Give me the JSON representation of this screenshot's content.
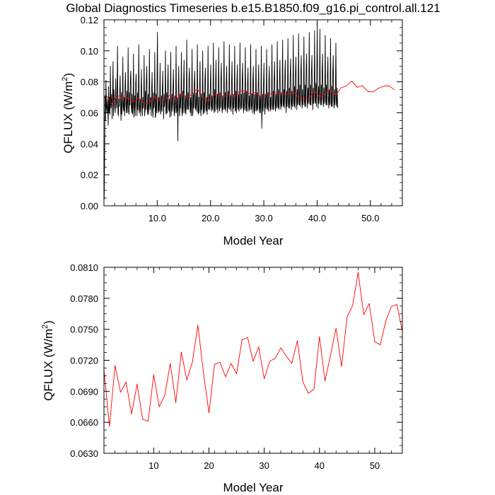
{
  "chart_data": [
    {
      "type": "line",
      "title": "Global Diagnostics Timeseries b.e15.B1850.f09_g16.pi_control.all.121",
      "ylabel_main": "QFLUX (W/m",
      "ylabel_sup": "2",
      "ylabel_close": ")",
      "xlabel": "Model Year",
      "xlim": [
        0.0,
        56.0
      ],
      "ylim": [
        0.0,
        0.12
      ],
      "x_ticks": [
        10,
        20,
        30,
        40,
        50
      ],
      "x_tick_labels": [
        "10.0",
        "20.0",
        "30.0",
        "40.0",
        "50.0"
      ],
      "y_ticks": [
        0.0,
        0.02,
        0.04,
        0.06,
        0.08,
        0.1,
        0.12
      ],
      "y_tick_labels": [
        "0.00",
        "0.02",
        "0.04",
        "0.06",
        "0.08",
        "0.10",
        "0.12"
      ],
      "series": [
        {
          "color": "#000000",
          "x_start": 0.0417,
          "x_step": 0.0833,
          "values": [
            0.004,
            0.03,
            0.071,
            0.055,
            0.081,
            0.064,
            0.06,
            0.069,
            0.062,
            0.052,
            0.077,
            0.06,
            0.07,
            0.059,
            0.09,
            0.063,
            0.066,
            0.072,
            0.056,
            0.074,
            0.093,
            0.058,
            0.075,
            0.068,
            0.063,
            0.06,
            0.082,
            0.067,
            0.063,
            0.072,
            0.103,
            0.06,
            0.058,
            0.069,
            0.064,
            0.074,
            0.084,
            0.063,
            0.055,
            0.073,
            0.059,
            0.066,
            0.096,
            0.064,
            0.061,
            0.07,
            0.058,
            0.077,
            0.086,
            0.065,
            0.06,
            0.074,
            0.06,
            0.068,
            0.102,
            0.061,
            0.059,
            0.073,
            0.065,
            0.082,
            0.087,
            0.064,
            0.06,
            0.072,
            0.059,
            0.066,
            0.098,
            0.057,
            0.064,
            0.071,
            0.058,
            0.079,
            0.085,
            0.066,
            0.058,
            0.073,
            0.062,
            0.071,
            0.104,
            0.06,
            0.062,
            0.069,
            0.058,
            0.074,
            0.088,
            0.064,
            0.058,
            0.07,
            0.063,
            0.068,
            0.097,
            0.058,
            0.061,
            0.074,
            0.062,
            0.081,
            0.09,
            0.063,
            0.059,
            0.072,
            0.059,
            0.069,
            0.101,
            0.062,
            0.065,
            0.07,
            0.058,
            0.076,
            0.086,
            0.061,
            0.057,
            0.073,
            0.063,
            0.067,
            0.099,
            0.057,
            0.058,
            0.072,
            0.06,
            0.08,
            0.112,
            0.062,
            0.06,
            0.07,
            0.061,
            0.069,
            0.092,
            0.059,
            0.062,
            0.071,
            0.061,
            0.075,
            0.087,
            0.066,
            0.056,
            0.072,
            0.064,
            0.068,
            0.1,
            0.06,
            0.059,
            0.073,
            0.06,
            0.078,
            0.091,
            0.063,
            0.061,
            0.069,
            0.057,
            0.07,
            0.099,
            0.058,
            0.064,
            0.072,
            0.061,
            0.076,
            0.088,
            0.065,
            0.058,
            0.071,
            0.06,
            0.068,
            0.103,
            0.06,
            0.062,
            0.07,
            0.042,
            0.077,
            0.09,
            0.062,
            0.058,
            0.072,
            0.063,
            0.071,
            0.099,
            0.061,
            0.058,
            0.074,
            0.06,
            0.08,
            0.094,
            0.064,
            0.06,
            0.071,
            0.059,
            0.07,
            0.107,
            0.062,
            0.063,
            0.073,
            0.062,
            0.082,
            0.089,
            0.066,
            0.06,
            0.07,
            0.058,
            0.069,
            0.101,
            0.058,
            0.06,
            0.072,
            0.063,
            0.079,
            0.087,
            0.064,
            0.062,
            0.073,
            0.061,
            0.07,
            0.104,
            0.061,
            0.059,
            0.07,
            0.06,
            0.078,
            0.093,
            0.062,
            0.058,
            0.072,
            0.062,
            0.071,
            0.1,
            0.059,
            0.061,
            0.073,
            0.06,
            0.081,
            0.089,
            0.063,
            0.061,
            0.07,
            0.059,
            0.07,
            0.103,
            0.062,
            0.063,
            0.072,
            0.062,
            0.077,
            0.091,
            0.065,
            0.061,
            0.071,
            0.062,
            0.071,
            0.105,
            0.063,
            0.06,
            0.075,
            0.061,
            0.081,
            0.094,
            0.066,
            0.062,
            0.072,
            0.06,
            0.072,
            0.102,
            0.064,
            0.061,
            0.073,
            0.063,
            0.083,
            0.092,
            0.064,
            0.06,
            0.071,
            0.062,
            0.07,
            0.106,
            0.063,
            0.062,
            0.073,
            0.061,
            0.08,
            0.09,
            0.065,
            0.06,
            0.074,
            0.063,
            0.073,
            0.104,
            0.062,
            0.064,
            0.071,
            0.061,
            0.079,
            0.093,
            0.066,
            0.059,
            0.072,
            0.063,
            0.071,
            0.103,
            0.061,
            0.062,
            0.074,
            0.06,
            0.08,
            0.091,
            0.064,
            0.062,
            0.072,
            0.061,
            0.071,
            0.105,
            0.064,
            0.062,
            0.072,
            0.063,
            0.082,
            0.092,
            0.065,
            0.06,
            0.073,
            0.062,
            0.072,
            0.102,
            0.063,
            0.061,
            0.074,
            0.061,
            0.079,
            0.089,
            0.066,
            0.061,
            0.071,
            0.062,
            0.071,
            0.104,
            0.062,
            0.064,
            0.072,
            0.06,
            0.08,
            0.09,
            0.063,
            0.059,
            0.072,
            0.061,
            0.07,
            0.101,
            0.062,
            0.061,
            0.073,
            0.062,
            0.078,
            0.091,
            0.064,
            0.06,
            0.071,
            0.06,
            0.07,
            0.103,
            0.05,
            0.062,
            0.072,
            0.061,
            0.079,
            0.092,
            0.065,
            0.059,
            0.072,
            0.063,
            0.071,
            0.101,
            0.062,
            0.063,
            0.073,
            0.061,
            0.081,
            0.09,
            0.066,
            0.061,
            0.07,
            0.062,
            0.073,
            0.104,
            0.064,
            0.062,
            0.074,
            0.062,
            0.082,
            0.093,
            0.067,
            0.061,
            0.072,
            0.063,
            0.073,
            0.106,
            0.064,
            0.063,
            0.075,
            0.062,
            0.083,
            0.094,
            0.067,
            0.062,
            0.073,
            0.064,
            0.073,
            0.107,
            0.065,
            0.064,
            0.075,
            0.063,
            0.084,
            0.094,
            0.068,
            0.06,
            0.074,
            0.064,
            0.074,
            0.108,
            0.065,
            0.063,
            0.076,
            0.063,
            0.085,
            0.095,
            0.068,
            0.062,
            0.074,
            0.064,
            0.074,
            0.11,
            0.066,
            0.064,
            0.077,
            0.063,
            0.086,
            0.096,
            0.069,
            0.062,
            0.075,
            0.065,
            0.075,
            0.111,
            0.066,
            0.065,
            0.078,
            0.064,
            0.087,
            0.097,
            0.069,
            0.063,
            0.075,
            0.065,
            0.076,
            0.109,
            0.067,
            0.064,
            0.078,
            0.064,
            0.088,
            0.098,
            0.07,
            0.063,
            0.076,
            0.066,
            0.076,
            0.112,
            0.067,
            0.065,
            0.078,
            0.065,
            0.087,
            0.097,
            0.07,
            0.062,
            0.076,
            0.066,
            0.076,
            0.113,
            0.067,
            0.066,
            0.079,
            0.064,
            0.088,
            0.118,
            0.07,
            0.063,
            0.077,
            0.066,
            0.077,
            0.114,
            0.068,
            0.065,
            0.078,
            0.065,
            0.087,
            0.098,
            0.07,
            0.064,
            0.076,
            0.066,
            0.076,
            0.11,
            0.067,
            0.065,
            0.078,
            0.065,
            0.085,
            0.096,
            0.069,
            0.063,
            0.075,
            0.065,
            0.076,
            0.108,
            0.066,
            0.064,
            0.077,
            0.064,
            0.086,
            0.097,
            0.069,
            0.063,
            0.075,
            0.065,
            0.075,
            0.105,
            0.066,
            0.064,
            0.076,
            0.064,
            0.063
          ]
        },
        {
          "color": "#ff0000",
          "x_start": 0.5,
          "x_step": 1.0,
          "values": [
            0.0711,
            0.0656,
            0.0715,
            0.0689,
            0.0699,
            0.0668,
            0.0697,
            0.0663,
            0.0661,
            0.0706,
            0.0675,
            0.0686,
            0.0717,
            0.0679,
            0.0728,
            0.0701,
            0.0718,
            0.0754,
            0.0708,
            0.0669,
            0.0716,
            0.0718,
            0.0704,
            0.0717,
            0.0707,
            0.074,
            0.0742,
            0.0719,
            0.0733,
            0.0702,
            0.0719,
            0.0722,
            0.0732,
            0.0724,
            0.0717,
            0.0739,
            0.0699,
            0.0688,
            0.0692,
            0.0743,
            0.07,
            0.0725,
            0.0751,
            0.0714,
            0.0762,
            0.0773,
            0.0805,
            0.0764,
            0.0775,
            0.0738,
            0.0735,
            0.0758,
            0.0772,
            0.0774,
            0.0748
          ]
        }
      ]
    },
    {
      "type": "line",
      "title": "",
      "ylabel_main": "QFLUX (W/m",
      "ylabel_sup": "2",
      "ylabel_close": ")",
      "xlabel": "Model Year",
      "xlim": [
        1,
        55
      ],
      "ylim": [
        0.063,
        0.081
      ],
      "x_ticks": [
        10,
        20,
        30,
        40,
        50
      ],
      "x_tick_labels": [
        "10",
        "20",
        "30",
        "40",
        "50"
      ],
      "y_ticks": [
        0.063,
        0.066,
        0.069,
        0.072,
        0.075,
        0.078,
        0.081
      ],
      "y_tick_labels": [
        "0.0630",
        "0.0660",
        "0.0690",
        "0.0720",
        "0.0750",
        "0.0780",
        "0.0810"
      ],
      "series": [
        {
          "color": "#ff0000",
          "x": [
            1,
            2,
            3,
            4,
            5,
            6,
            7,
            8,
            9,
            10,
            11,
            12,
            13,
            14,
            15,
            16,
            17,
            18,
            19,
            20,
            21,
            22,
            23,
            24,
            25,
            26,
            27,
            28,
            29,
            30,
            31,
            32,
            33,
            34,
            35,
            36,
            37,
            38,
            39,
            40,
            41,
            42,
            43,
            44,
            45,
            46,
            47,
            48,
            49,
            50,
            51,
            52,
            53,
            54,
            55
          ],
          "values": [
            0.0711,
            0.0656,
            0.0715,
            0.0689,
            0.0699,
            0.0668,
            0.0697,
            0.0663,
            0.0661,
            0.0706,
            0.0675,
            0.0686,
            0.0717,
            0.0679,
            0.0728,
            0.0701,
            0.0718,
            0.0754,
            0.0708,
            0.0669,
            0.0716,
            0.0718,
            0.0704,
            0.0717,
            0.0707,
            0.074,
            0.0742,
            0.0719,
            0.0733,
            0.0702,
            0.0719,
            0.0722,
            0.0732,
            0.0724,
            0.0717,
            0.0739,
            0.0699,
            0.0688,
            0.0692,
            0.0743,
            0.07,
            0.0725,
            0.0751,
            0.0714,
            0.0762,
            0.0773,
            0.0805,
            0.0764,
            0.0775,
            0.0738,
            0.0735,
            0.0758,
            0.0772,
            0.0774,
            0.0748
          ]
        }
      ]
    }
  ]
}
